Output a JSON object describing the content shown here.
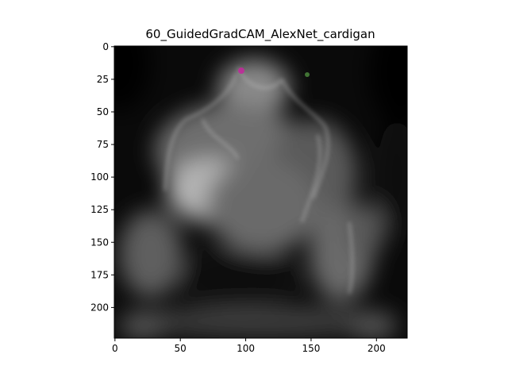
{
  "figure": {
    "title": "60_GuidedGradCAM_AlexNet_cardigan",
    "background_color": "#ffffff",
    "image_description_colormap": "grayscale"
  },
  "axes": {
    "x_ticks": [
      "0",
      "50",
      "100",
      "150",
      "200"
    ],
    "x_tick_values": [
      0,
      50,
      100,
      150,
      200
    ],
    "y_ticks": [
      "0",
      "25",
      "50",
      "75",
      "100",
      "125",
      "150",
      "175",
      "200"
    ],
    "y_tick_values": [
      0,
      25,
      50,
      75,
      100,
      125,
      150,
      175,
      200
    ],
    "x_range": [
      -0.5,
      223.5
    ],
    "y_range": [
      -0.5,
      223.5
    ],
    "spine_color": "#000000"
  }
}
